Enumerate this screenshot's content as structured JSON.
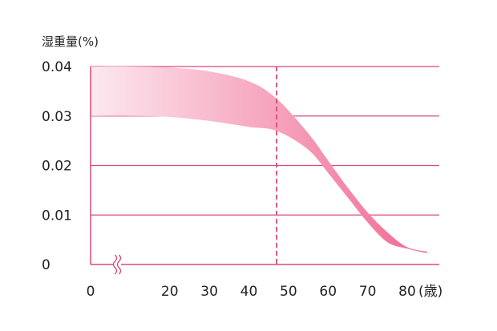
{
  "chart_data": {
    "type": "area",
    "title": "",
    "xlabel": "(歳)",
    "ylabel": "湿重量(%)",
    "x_ticks": [
      0,
      20,
      30,
      40,
      50,
      60,
      70,
      80
    ],
    "x_tick_labels": [
      "0",
      "20",
      "30",
      "40",
      "50",
      "60",
      "70",
      "80"
    ],
    "y_ticks": [
      0,
      0.01,
      0.02,
      0.03,
      0.04
    ],
    "y_tick_labels": [
      "0",
      "0.01",
      "0.02",
      "0.03",
      "0.04"
    ],
    "xlim": [
      0,
      87
    ],
    "ylim": [
      0,
      0.04
    ],
    "axis_break": "x-axis between 0 and 20",
    "grid": "horizontal",
    "marker_line": {
      "x": 47,
      "style": "dashed"
    },
    "band": {
      "x": [
        0,
        10,
        20,
        30,
        40,
        47,
        55,
        60,
        65,
        70,
        75,
        80,
        85
      ],
      "upper": [
        0.04,
        0.04,
        0.0398,
        0.039,
        0.037,
        0.0335,
        0.0265,
        0.021,
        0.0155,
        0.0105,
        0.0065,
        0.0035,
        0.0026
      ],
      "lower": [
        0.03,
        0.03,
        0.0298,
        0.029,
        0.0278,
        0.027,
        0.0232,
        0.0185,
        0.0135,
        0.0085,
        0.0045,
        0.0032,
        0.0023
      ]
    },
    "colors": {
      "axis": "#d8487a",
      "band_light": "#fde8ef",
      "band_dark": "#f06a93",
      "text": "#222222"
    }
  }
}
